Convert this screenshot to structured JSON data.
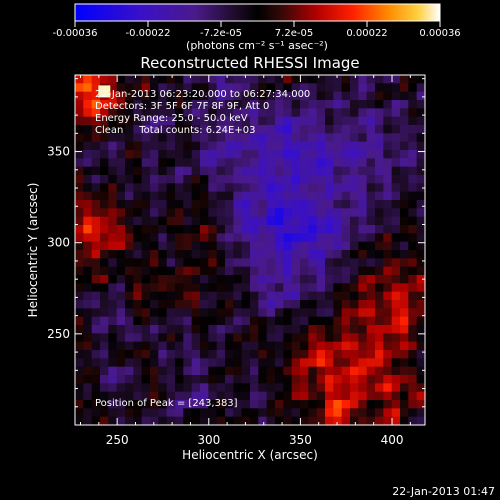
{
  "chart_data": {
    "type": "heatmap",
    "title": "Reconstructed RHESSI Image",
    "xlabel": "Heliocentric X (arcsec)",
    "ylabel": "Heliocentric Y (arcsec)",
    "xlim": [
      227,
      418
    ],
    "ylim": [
      200,
      392
    ],
    "x_ticks": [
      250,
      300,
      350,
      400
    ],
    "y_ticks": [
      250,
      300,
      350
    ],
    "colorbar": {
      "ticks": [
        "-0.00036",
        "-0.00022",
        "-7.2e-05",
        "7.2e-05",
        "0.00022",
        "0.00036"
      ],
      "range": [
        -0.00036,
        0.00036
      ]
    },
    "peak_position": [
      243,
      383
    ],
    "annotations": {
      "time_range": "22-Jan-2013 06:23:20.000 to 06:27:34.000",
      "detectors": "Detectors: 3F 5F 6F 7F 8F 9F, Att 0",
      "energy_range": "Energy Range: 25.0 - 50.0 keV",
      "clean_counts": "Clean     Total counts: 6.24E+03",
      "peak": "Position of Peak = [243,383]"
    }
  },
  "units_label": "(photons cm⁻² s⁻¹ asec⁻²)",
  "timestamp": "22-Jan-2013 01:47"
}
